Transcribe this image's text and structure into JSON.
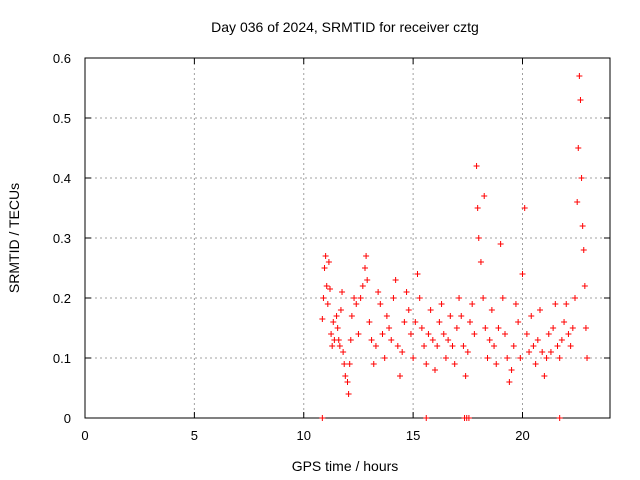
{
  "chart_data": {
    "type": "scatter",
    "title": "Day 036 of 2024, SRMTID for receiver cztg",
    "xlabel": "GPS time / hours",
    "ylabel": "SRMTID / TECUs",
    "xlim": [
      0,
      24
    ],
    "ylim": [
      0,
      0.6
    ],
    "xticks": [
      "0",
      "5",
      "10",
      "15",
      "20"
    ],
    "yticks": [
      "0",
      "0.1",
      "0.2",
      "0.3",
      "0.4",
      "0.5",
      "0.6"
    ],
    "grid": true,
    "marker": "+",
    "color": "#ff0000",
    "series": [
      {
        "name": "SRMTID",
        "points": [
          [
            10.85,
            0.165
          ],
          [
            10.9,
            0.2
          ],
          [
            10.95,
            0.25
          ],
          [
            11.0,
            0.27
          ],
          [
            11.05,
            0.22
          ],
          [
            11.1,
            0.19
          ],
          [
            11.15,
            0.26
          ],
          [
            11.2,
            0.215
          ],
          [
            11.25,
            0.14
          ],
          [
            11.3,
            0.12
          ],
          [
            11.35,
            0.16
          ],
          [
            11.4,
            0.13
          ],
          [
            11.5,
            0.17
          ],
          [
            11.55,
            0.15
          ],
          [
            11.6,
            0.13
          ],
          [
            11.65,
            0.12
          ],
          [
            11.7,
            0.18
          ],
          [
            11.75,
            0.21
          ],
          [
            11.8,
            0.11
          ],
          [
            11.85,
            0.09
          ],
          [
            11.9,
            0.07
          ],
          [
            12.0,
            0.06
          ],
          [
            12.05,
            0.04
          ],
          [
            12.1,
            0.09
          ],
          [
            12.15,
            0.13
          ],
          [
            12.2,
            0.17
          ],
          [
            12.3,
            0.2
          ],
          [
            12.4,
            0.19
          ],
          [
            12.5,
            0.14
          ],
          [
            12.6,
            0.2
          ],
          [
            12.7,
            0.22
          ],
          [
            12.8,
            0.25
          ],
          [
            12.85,
            0.27
          ],
          [
            12.9,
            0.23
          ],
          [
            13.0,
            0.16
          ],
          [
            13.1,
            0.13
          ],
          [
            13.2,
            0.09
          ],
          [
            13.3,
            0.12
          ],
          [
            13.4,
            0.21
          ],
          [
            13.5,
            0.19
          ],
          [
            13.6,
            0.14
          ],
          [
            13.7,
            0.1
          ],
          [
            13.8,
            0.17
          ],
          [
            13.9,
            0.15
          ],
          [
            14.0,
            0.13
          ],
          [
            14.1,
            0.2
          ],
          [
            14.2,
            0.23
          ],
          [
            14.3,
            0.12
          ],
          [
            14.4,
            0.07
          ],
          [
            14.5,
            0.11
          ],
          [
            14.6,
            0.16
          ],
          [
            14.7,
            0.21
          ],
          [
            14.8,
            0.18
          ],
          [
            14.9,
            0.14
          ],
          [
            15.0,
            0.1
          ],
          [
            15.1,
            0.16
          ],
          [
            15.2,
            0.24
          ],
          [
            15.3,
            0.2
          ],
          [
            15.4,
            0.15
          ],
          [
            15.5,
            0.12
          ],
          [
            15.6,
            0.09
          ],
          [
            15.7,
            0.14
          ],
          [
            15.8,
            0.18
          ],
          [
            15.9,
            0.13
          ],
          [
            16.0,
            0.08
          ],
          [
            16.1,
            0.12
          ],
          [
            16.2,
            0.16
          ],
          [
            16.3,
            0.19
          ],
          [
            16.4,
            0.14
          ],
          [
            16.5,
            0.1
          ],
          [
            16.6,
            0.13
          ],
          [
            16.7,
            0.17
          ],
          [
            16.8,
            0.12
          ],
          [
            16.9,
            0.09
          ],
          [
            17.0,
            0.15
          ],
          [
            17.1,
            0.2
          ],
          [
            17.2,
            0.17
          ],
          [
            17.3,
            0.12
          ],
          [
            17.4,
            0.07
          ],
          [
            17.5,
            0.11
          ],
          [
            17.6,
            0.16
          ],
          [
            17.7,
            0.19
          ],
          [
            17.8,
            0.14
          ],
          [
            17.9,
            0.42
          ],
          [
            17.95,
            0.35
          ],
          [
            18.0,
            0.3
          ],
          [
            18.1,
            0.26
          ],
          [
            18.2,
            0.2
          ],
          [
            18.25,
            0.37
          ],
          [
            18.3,
            0.15
          ],
          [
            18.4,
            0.1
          ],
          [
            18.5,
            0.13
          ],
          [
            18.6,
            0.18
          ],
          [
            18.7,
            0.12
          ],
          [
            18.8,
            0.09
          ],
          [
            18.9,
            0.15
          ],
          [
            19.0,
            0.29
          ],
          [
            19.1,
            0.2
          ],
          [
            19.2,
            0.14
          ],
          [
            19.3,
            0.1
          ],
          [
            19.4,
            0.06
          ],
          [
            19.5,
            0.08
          ],
          [
            19.6,
            0.12
          ],
          [
            19.7,
            0.19
          ],
          [
            19.8,
            0.16
          ],
          [
            19.9,
            0.1
          ],
          [
            20.0,
            0.24
          ],
          [
            20.1,
            0.35
          ],
          [
            20.2,
            0.14
          ],
          [
            20.3,
            0.11
          ],
          [
            20.4,
            0.17
          ],
          [
            20.5,
            0.12
          ],
          [
            20.6,
            0.09
          ],
          [
            20.7,
            0.13
          ],
          [
            20.8,
            0.18
          ],
          [
            20.9,
            0.11
          ],
          [
            21.0,
            0.07
          ],
          [
            21.1,
            0.1
          ],
          [
            21.2,
            0.14
          ],
          [
            21.3,
            0.11
          ],
          [
            21.4,
            0.15
          ],
          [
            21.5,
            0.19
          ],
          [
            21.6,
            0.12
          ],
          [
            21.7,
            0.1
          ],
          [
            21.8,
            0.13
          ],
          [
            21.9,
            0.16
          ],
          [
            22.0,
            0.19
          ],
          [
            22.1,
            0.14
          ],
          [
            22.2,
            0.12
          ],
          [
            22.3,
            0.15
          ],
          [
            22.4,
            0.2
          ],
          [
            22.5,
            0.36
          ],
          [
            22.55,
            0.45
          ],
          [
            22.6,
            0.57
          ],
          [
            22.65,
            0.53
          ],
          [
            22.7,
            0.4
          ],
          [
            22.75,
            0.32
          ],
          [
            22.8,
            0.28
          ],
          [
            22.85,
            0.22
          ],
          [
            22.9,
            0.15
          ],
          [
            22.95,
            0.1
          ]
        ]
      }
    ],
    "zero_points_x": [
      10.85,
      15.6,
      17.35,
      17.45,
      17.55,
      21.7
    ]
  }
}
